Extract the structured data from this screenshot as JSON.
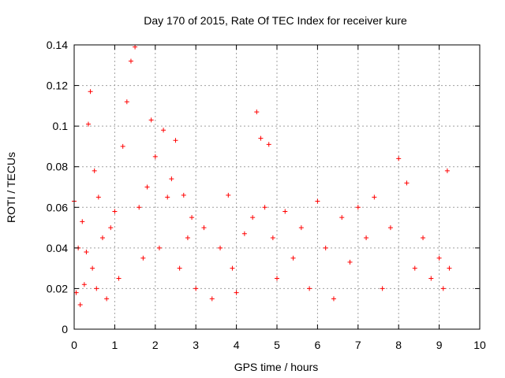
{
  "chart_data": {
    "type": "scatter",
    "title": "Day 170 of 2015, Rate Of TEC Index for receiver kure",
    "xlabel": "GPS time / hours",
    "ylabel": "ROTI / TECUs",
    "xlim": [
      0,
      10
    ],
    "ylim": [
      0,
      0.14
    ],
    "xticks": [
      0,
      1,
      2,
      3,
      4,
      5,
      6,
      7,
      8,
      9,
      10
    ],
    "xtick_labels": [
      "0",
      "1",
      "2",
      "3",
      "4",
      "5",
      "6",
      "7",
      "8",
      "9",
      "10"
    ],
    "yticks": [
      0,
      0.02,
      0.04,
      0.06,
      0.08,
      0.1,
      0.12,
      0.14
    ],
    "ytick_labels": [
      "0",
      "0.02",
      "0.04",
      "0.06",
      "0.08",
      "0.1",
      "0.12",
      "0.14"
    ],
    "grid": true,
    "marker": "+",
    "color": "#ff0000",
    "series": [
      {
        "name": "ROTI",
        "x": [
          0.0,
          0.05,
          0.1,
          0.15,
          0.2,
          0.25,
          0.3,
          0.35,
          0.4,
          0.45,
          0.5,
          0.55,
          0.6,
          0.7,
          0.8,
          0.9,
          1.0,
          1.1,
          1.2,
          1.3,
          1.4,
          1.5,
          1.6,
          1.7,
          1.8,
          1.9,
          2.0,
          2.1,
          2.2,
          2.3,
          2.4,
          2.5,
          2.6,
          2.7,
          2.8,
          2.9,
          3.0,
          3.2,
          3.4,
          3.6,
          3.8,
          3.9,
          4.0,
          4.2,
          4.4,
          4.5,
          4.6,
          4.7,
          4.8,
          4.9,
          5.0,
          5.2,
          5.4,
          5.6,
          5.8,
          6.0,
          6.2,
          6.4,
          6.6,
          6.8,
          7.0,
          7.2,
          7.4,
          7.6,
          7.8,
          8.0,
          8.2,
          8.4,
          8.6,
          8.8,
          9.0,
          9.1,
          9.2,
          9.25
        ],
        "y": [
          0.063,
          0.018,
          0.04,
          0.012,
          0.053,
          0.022,
          0.038,
          0.101,
          0.117,
          0.03,
          0.078,
          0.02,
          0.065,
          0.045,
          0.015,
          0.05,
          0.058,
          0.025,
          0.09,
          0.112,
          0.132,
          0.139,
          0.06,
          0.035,
          0.07,
          0.103,
          0.085,
          0.04,
          0.098,
          0.065,
          0.074,
          0.093,
          0.03,
          0.066,
          0.045,
          0.055,
          0.02,
          0.05,
          0.015,
          0.04,
          0.066,
          0.03,
          0.018,
          0.047,
          0.055,
          0.107,
          0.094,
          0.06,
          0.091,
          0.045,
          0.025,
          0.058,
          0.035,
          0.05,
          0.02,
          0.063,
          0.04,
          0.015,
          0.055,
          0.033,
          0.06,
          0.045,
          0.065,
          0.02,
          0.05,
          0.084,
          0.072,
          0.03,
          0.045,
          0.025,
          0.035,
          0.02,
          0.078,
          0.03
        ]
      }
    ]
  }
}
